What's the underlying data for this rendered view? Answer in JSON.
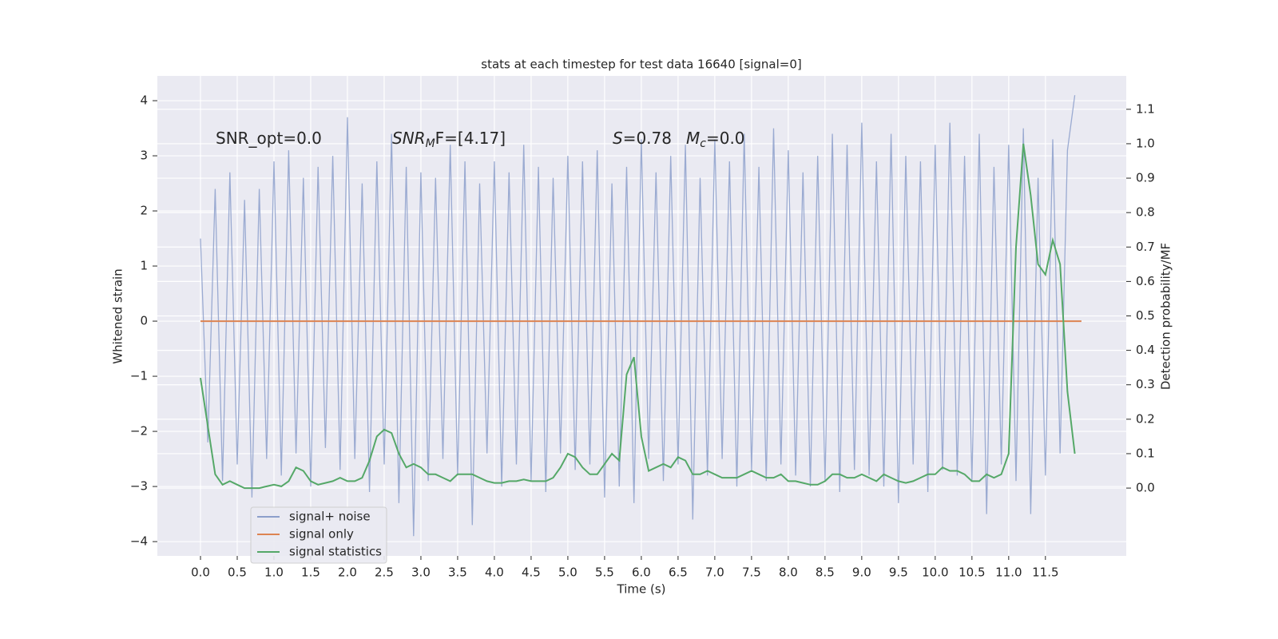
{
  "chart_data": {
    "type": "line",
    "title": "stats at each timestep for test data 16640 [signal=0]",
    "xlabel": "Time (s)",
    "ylabel": "Whitened strain",
    "y2label": "Detection probability/MF",
    "annotations": [
      {
        "text": "SNR_opt=0.0"
      },
      {
        "text": "SNR",
        "sub": "M",
        "rest": "F=[4.17]"
      },
      {
        "text": "S",
        "rest": "=0.78"
      },
      {
        "text": "M",
        "sub": "c",
        "rest": "=0.0"
      }
    ],
    "xlim": [
      -0.587,
      12.6
    ],
    "ylim": [
      -4.26,
      4.45
    ],
    "y2lim": [
      -0.197,
      1.197
    ],
    "xticks": [
      {
        "value": 0,
        "label": "0.0"
      },
      0.5,
      {
        "value": 1,
        "label": "1.0"
      },
      1.5,
      {
        "value": 2,
        "label": "2.0"
      },
      2.5,
      {
        "value": 3,
        "label": "3.0"
      },
      3.5,
      {
        "value": 4,
        "label": "4.0"
      },
      4.5,
      {
        "value": 5,
        "label": "5.0"
      },
      5.5,
      {
        "value": 6,
        "label": "6.0"
      },
      6.5,
      {
        "value": 7,
        "label": "7.0"
      },
      7.5,
      {
        "value": 8,
        "label": "8.0"
      },
      8.5,
      {
        "value": 9,
        "label": "9.0"
      },
      9.5,
      {
        "value": 10,
        "label": "10.0"
      },
      10.5,
      {
        "value": 11,
        "label": "11.0"
      },
      11.5
    ],
    "yticks": [
      {
        "value": -4,
        "label": "−4"
      },
      {
        "value": -3,
        "label": "−3"
      },
      {
        "value": -2,
        "label": "−2"
      },
      {
        "value": -1,
        "label": "−1"
      },
      0,
      1,
      2,
      3,
      4
    ],
    "y2ticks": [
      {
        "value": 0,
        "label": "0.0"
      },
      0.1,
      0.2,
      0.3,
      0.4,
      0.5,
      0.6,
      0.7,
      0.8,
      0.9,
      {
        "value": 1,
        "label": "1.0"
      },
      1.1
    ],
    "grid": true,
    "legend": "lower left",
    "series": [
      {
        "name": "signal+ noise",
        "color": "#8c9fcb",
        "x": [
          0,
          0.1,
          0.2,
          0.3,
          0.4,
          0.5,
          0.6,
          0.7,
          0.8,
          0.9,
          1,
          1.1,
          1.2,
          1.3,
          1.4,
          1.5,
          1.6,
          1.7,
          1.8,
          1.9,
          2,
          2.1,
          2.2,
          2.3,
          2.4,
          2.5,
          2.6,
          2.7,
          2.8,
          2.9,
          3,
          3.1,
          3.2,
          3.3,
          3.4,
          3.5,
          3.6,
          3.7,
          3.8,
          3.9,
          4,
          4.1,
          4.2,
          4.3,
          4.4,
          4.5,
          4.6,
          4.7,
          4.8,
          4.9,
          5,
          5.1,
          5.2,
          5.3,
          5.4,
          5.5,
          5.6,
          5.7,
          5.8,
          5.9,
          6,
          6.1,
          6.2,
          6.3,
          6.4,
          6.5,
          6.6,
          6.7,
          6.8,
          6.9,
          7,
          7.1,
          7.2,
          7.3,
          7.4,
          7.5,
          7.6,
          7.7,
          7.8,
          7.9,
          8,
          8.1,
          8.2,
          8.3,
          8.4,
          8.5,
          8.6,
          8.7,
          8.8,
          8.9,
          9,
          9.1,
          9.2,
          9.3,
          9.4,
          9.5,
          9.6,
          9.7,
          9.8,
          9.9,
          10,
          10.1,
          10.2,
          10.3,
          10.4,
          10.5,
          10.6,
          10.7,
          10.8,
          10.9,
          11,
          11.1,
          11.2,
          11.3,
          11.4,
          11.5,
          11.6,
          11.7,
          11.8,
          11.9
        ],
        "values": [
          1.5,
          -2.2,
          2.4,
          -2.9,
          2.7,
          -2.6,
          2.2,
          -3.2,
          2.4,
          -2.5,
          2.9,
          -2.8,
          3.1,
          -2.4,
          2.6,
          -3.0,
          2.8,
          -2.3,
          3.0,
          -2.7,
          3.7,
          -2.5,
          2.5,
          -3.1,
          2.9,
          -2.6,
          3.4,
          -3.3,
          2.8,
          -3.9,
          2.7,
          -2.9,
          2.6,
          -2.5,
          3.2,
          -2.8,
          2.9,
          -3.7,
          2.5,
          -2.4,
          2.9,
          -3.0,
          2.7,
          -2.6,
          3.2,
          -2.9,
          2.8,
          -3.1,
          2.6,
          -2.4,
          3.0,
          -2.7,
          2.9,
          -2.6,
          3.1,
          -3.2,
          2.5,
          -3.0,
          2.8,
          -3.3,
          3.3,
          -2.5,
          2.7,
          -2.9,
          3.0,
          -2.6,
          3.2,
          -3.6,
          2.6,
          -2.8,
          3.3,
          -2.5,
          2.9,
          -3.0,
          3.4,
          -2.7,
          2.8,
          -2.9,
          3.5,
          -2.6,
          3.1,
          -2.8,
          2.7,
          -3.0,
          3.0,
          -2.9,
          3.4,
          -3.1,
          3.2,
          -2.7,
          3.6,
          -2.8,
          2.9,
          -3.0,
          3.4,
          -3.3,
          3.0,
          -2.6,
          2.9,
          -3.1,
          3.2,
          -2.7,
          3.6,
          -2.8,
          3.0,
          -2.9,
          3.4,
          -3.5,
          2.8,
          -2.6,
          3.2,
          -2.9,
          3.5,
          -3.5,
          2.6,
          -2.8,
          3.3,
          -2.4,
          3.1,
          4.1
        ]
      },
      {
        "name": "signal only",
        "color": "#dd8452",
        "x": [
          0,
          11.99
        ],
        "values": [
          0,
          0
        ]
      },
      {
        "name": "signal statistics",
        "color": "#55a868",
        "axis": "y2",
        "x": [
          0,
          0.1,
          0.2,
          0.3,
          0.4,
          0.5,
          0.6,
          0.7,
          0.8,
          0.9,
          1,
          1.1,
          1.2,
          1.3,
          1.4,
          1.5,
          1.6,
          1.7,
          1.8,
          1.9,
          2,
          2.1,
          2.2,
          2.3,
          2.4,
          2.5,
          2.6,
          2.7,
          2.8,
          2.9,
          3,
          3.1,
          3.2,
          3.3,
          3.4,
          3.5,
          3.6,
          3.7,
          3.8,
          3.9,
          4,
          4.1,
          4.2,
          4.3,
          4.4,
          4.5,
          4.6,
          4.7,
          4.8,
          4.9,
          5,
          5.1,
          5.2,
          5.3,
          5.4,
          5.5,
          5.6,
          5.7,
          5.8,
          5.9,
          6,
          6.1,
          6.2,
          6.3,
          6.4,
          6.5,
          6.6,
          6.7,
          6.8,
          6.9,
          7,
          7.1,
          7.2,
          7.3,
          7.4,
          7.5,
          7.6,
          7.7,
          7.8,
          7.9,
          8,
          8.1,
          8.2,
          8.3,
          8.4,
          8.5,
          8.6,
          8.7,
          8.8,
          8.9,
          9,
          9.1,
          9.2,
          9.3,
          9.4,
          9.5,
          9.6,
          9.7,
          9.8,
          9.9,
          10,
          10.1,
          10.2,
          10.3,
          10.4,
          10.5,
          10.6,
          10.7,
          10.8,
          10.9,
          11,
          11.1,
          11.2,
          11.3,
          11.4,
          11.5,
          11.6,
          11.7,
          11.8,
          11.9
        ],
        "values": [
          0.32,
          0.18,
          0.04,
          0.01,
          0.02,
          0.01,
          0.0,
          0.0,
          0.0,
          0.005,
          0.01,
          0.005,
          0.02,
          0.06,
          0.05,
          0.02,
          0.01,
          0.015,
          0.02,
          0.03,
          0.02,
          0.02,
          0.03,
          0.08,
          0.15,
          0.17,
          0.16,
          0.1,
          0.06,
          0.07,
          0.06,
          0.04,
          0.04,
          0.03,
          0.02,
          0.04,
          0.04,
          0.04,
          0.03,
          0.02,
          0.015,
          0.015,
          0.02,
          0.02,
          0.025,
          0.02,
          0.02,
          0.02,
          0.03,
          0.06,
          0.1,
          0.09,
          0.06,
          0.04,
          0.04,
          0.07,
          0.1,
          0.08,
          0.33,
          0.38,
          0.15,
          0.05,
          0.06,
          0.07,
          0.06,
          0.09,
          0.08,
          0.04,
          0.04,
          0.05,
          0.04,
          0.03,
          0.03,
          0.03,
          0.04,
          0.05,
          0.04,
          0.03,
          0.03,
          0.04,
          0.02,
          0.02,
          0.015,
          0.01,
          0.01,
          0.02,
          0.04,
          0.04,
          0.03,
          0.03,
          0.04,
          0.03,
          0.02,
          0.04,
          0.03,
          0.02,
          0.015,
          0.02,
          0.03,
          0.04,
          0.04,
          0.06,
          0.05,
          0.05,
          0.04,
          0.02,
          0.02,
          0.04,
          0.03,
          0.04,
          0.1,
          0.7,
          1.0,
          0.85,
          0.65,
          0.62,
          0.72,
          0.65,
          0.28,
          0.1
        ]
      }
    ]
  }
}
